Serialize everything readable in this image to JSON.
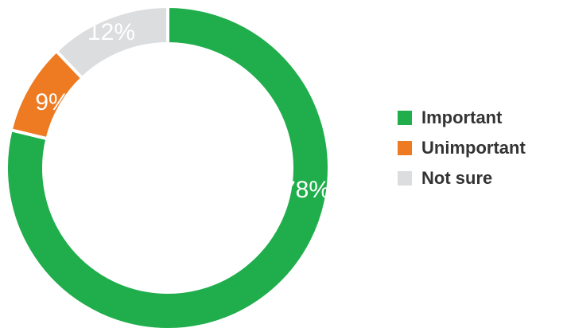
{
  "chart_data": {
    "type": "donut",
    "categories": [
      "Important",
      "Unimportant",
      "Not sure"
    ],
    "values": [
      78,
      9,
      12
    ],
    "value_labels": [
      "78%",
      "9%",
      "12%"
    ],
    "colors": [
      "#1fae4b",
      "#ee7a22",
      "#dcdddf"
    ],
    "legend": "right"
  }
}
